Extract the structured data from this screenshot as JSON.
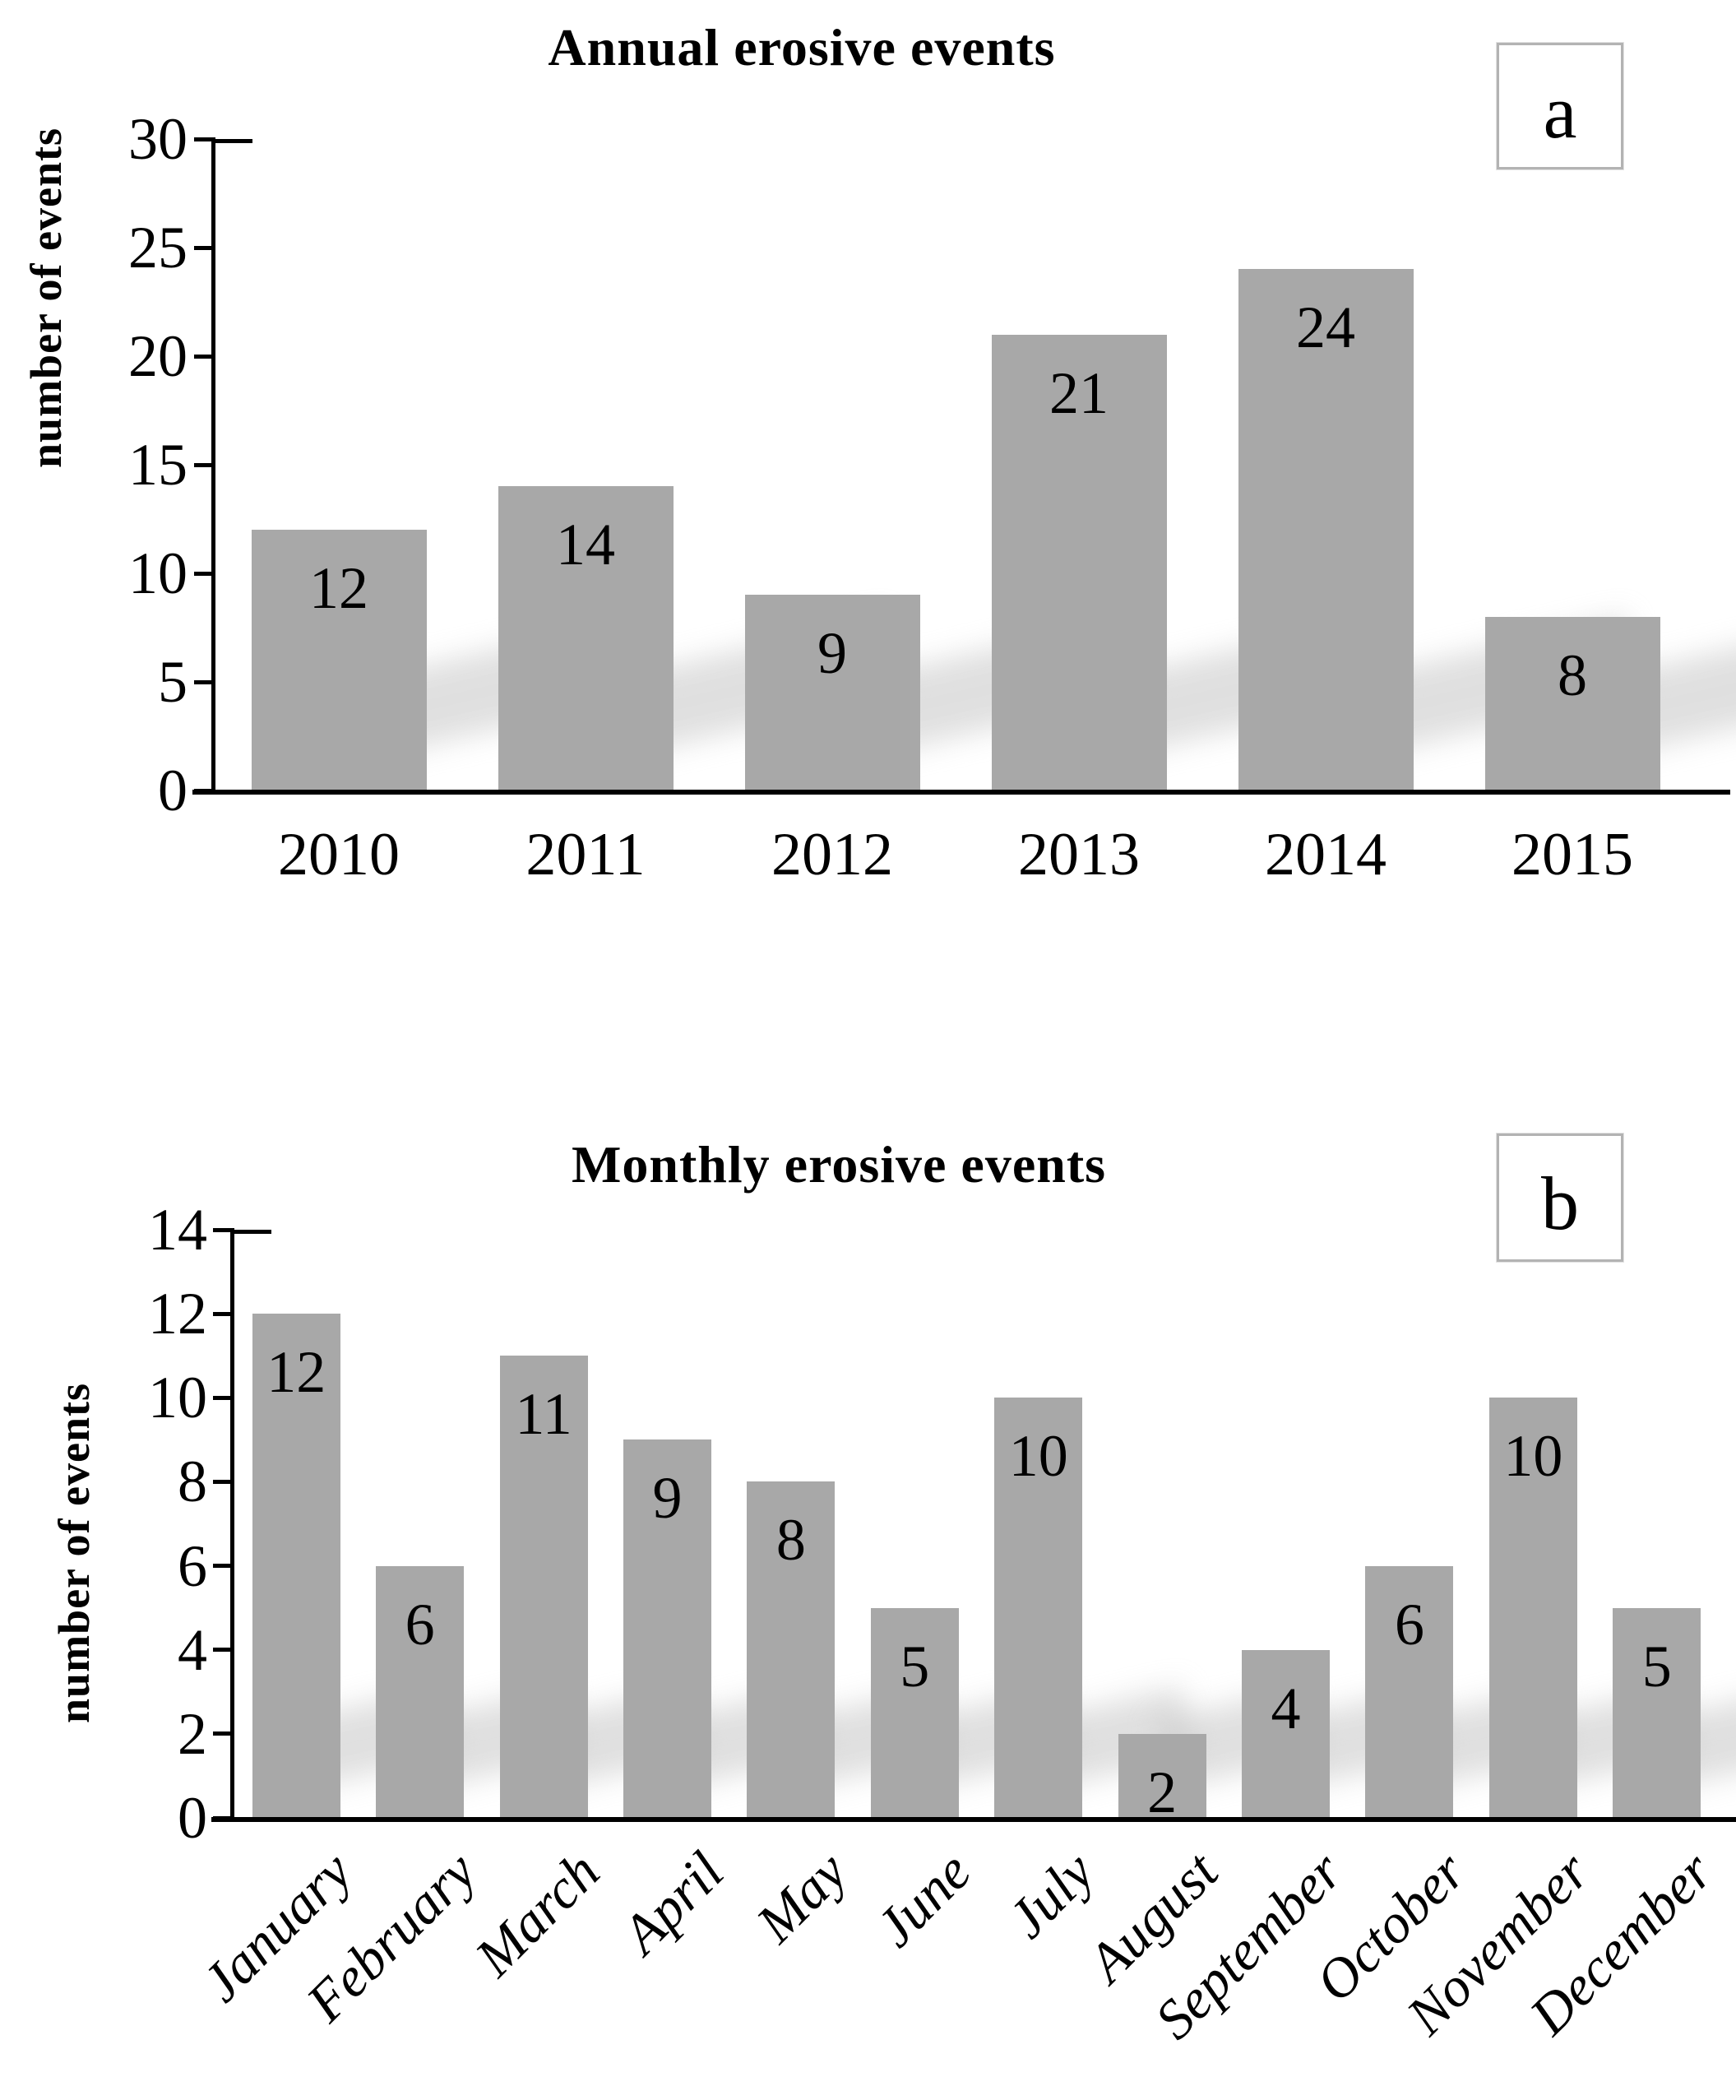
{
  "figure_caption_tags": [
    "a",
    "b"
  ],
  "chart_data": [
    {
      "type": "bar",
      "panel_label": "a",
      "title": "Annual erosive events",
      "xlabel": "",
      "ylabel": "number of events",
      "categories": [
        "2010",
        "2011",
        "2012",
        "2013",
        "2014",
        "2015"
      ],
      "values": [
        12,
        14,
        9,
        21,
        24,
        8
      ],
      "yticks": [
        0,
        5,
        10,
        15,
        20,
        25,
        30
      ],
      "ylim": [
        0,
        30
      ],
      "bar_color": "#a8a8a8",
      "grid": false,
      "legend": false,
      "value_labels": "inside-top"
    },
    {
      "type": "bar",
      "panel_label": "b",
      "title": "Monthly erosive events",
      "xlabel": "",
      "ylabel": "number of events",
      "categories": [
        "January",
        "February",
        "March",
        "April",
        "May",
        "June",
        "July",
        "August",
        "September",
        "October",
        "November",
        "December"
      ],
      "values": [
        12,
        6,
        11,
        9,
        8,
        5,
        10,
        2,
        4,
        6,
        10,
        5
      ],
      "yticks": [
        0,
        2,
        4,
        6,
        8,
        10,
        12,
        14
      ],
      "ylim": [
        0,
        14
      ],
      "bar_color": "#a8a8a8",
      "grid": false,
      "legend": false,
      "value_labels": "inside-top",
      "x_tick_rotation": 45,
      "x_tick_style": "italic"
    }
  ]
}
